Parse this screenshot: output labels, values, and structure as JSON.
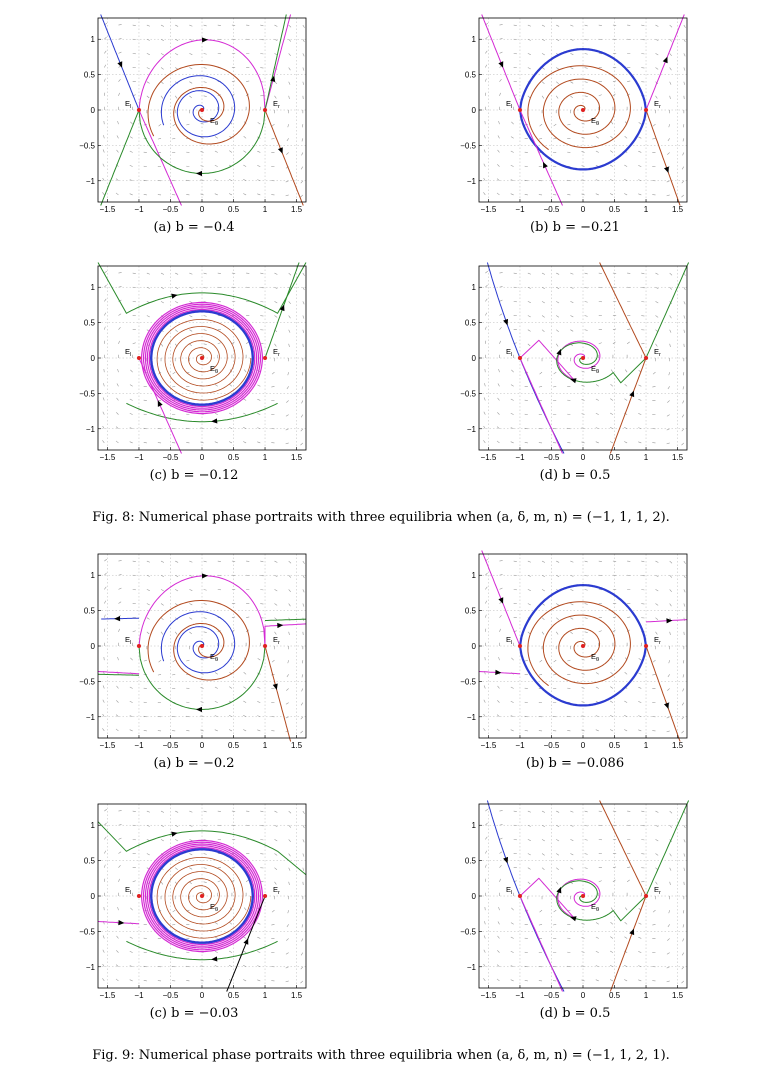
{
  "figures": [
    {
      "caption": "Fig. 8: Numerical phase portraits with three equilibria when (a, δ, m, n) = (−1, 1, 1, 2).",
      "panels": [
        {
          "caption": "(a) b = −0.4",
          "variant": "spiral_open",
          "tail": "steep"
        },
        {
          "caption": "(b) b = −0.21",
          "variant": "homoclinic_loop",
          "tail": "steep"
        },
        {
          "caption": "(c) b = −0.12",
          "variant": "limit_cycle",
          "tail": "steep"
        },
        {
          "caption": "(d) b = 0.5",
          "variant": "spiral_decay",
          "tail": "steep"
        }
      ]
    },
    {
      "caption": "Fig. 9: Numerical phase portraits with three equilibria when (a, δ, m, n) = (−1, 1, 2, 1).",
      "panels": [
        {
          "caption": "(a) b = −0.2",
          "variant": "spiral_open",
          "tail": "flat"
        },
        {
          "caption": "(b) b = −0.086",
          "variant": "homoclinic_loop",
          "tail": "flat"
        },
        {
          "caption": "(c) b = −0.03",
          "variant": "limit_cycle",
          "tail": "flat"
        },
        {
          "caption": "(d) b = 0.5",
          "variant": "spiral_decay",
          "tail": "flat"
        }
      ]
    }
  ],
  "axes": {
    "xlim": [
      -1.65,
      1.65
    ],
    "ylim": [
      -1.3,
      1.3
    ],
    "xticks": [
      -1.5,
      -1,
      -0.5,
      0,
      0.5,
      1,
      1.5
    ],
    "xtick_labels": [
      "−1.5",
      "−1",
      "−0.5",
      "0",
      "0.5",
      "1",
      "1.5"
    ],
    "yticks": [
      1,
      0.5,
      0,
      -0.5,
      -1
    ],
    "ytick_labels": [
      "1",
      "0.5",
      "0",
      "−0.5",
      "−1"
    ],
    "grid": true
  },
  "equilibria": [
    {
      "name": "E_l",
      "base": "E",
      "sub": "l",
      "x": -1,
      "y": 0
    },
    {
      "name": "E_0",
      "base": "E",
      "sub": "0",
      "x": 0,
      "y": 0
    },
    {
      "name": "E_r",
      "base": "E",
      "sub": "r",
      "x": 1,
      "y": 0
    }
  ],
  "colors": {
    "blue": "#2b3bd0",
    "brown": "#b24a1f",
    "green": "#2a8a2a",
    "magenta": "#d42ad4",
    "equilibrium": "#e02020",
    "grid": "#b8b8b8",
    "vector_field": "#9a9a9a"
  }
}
